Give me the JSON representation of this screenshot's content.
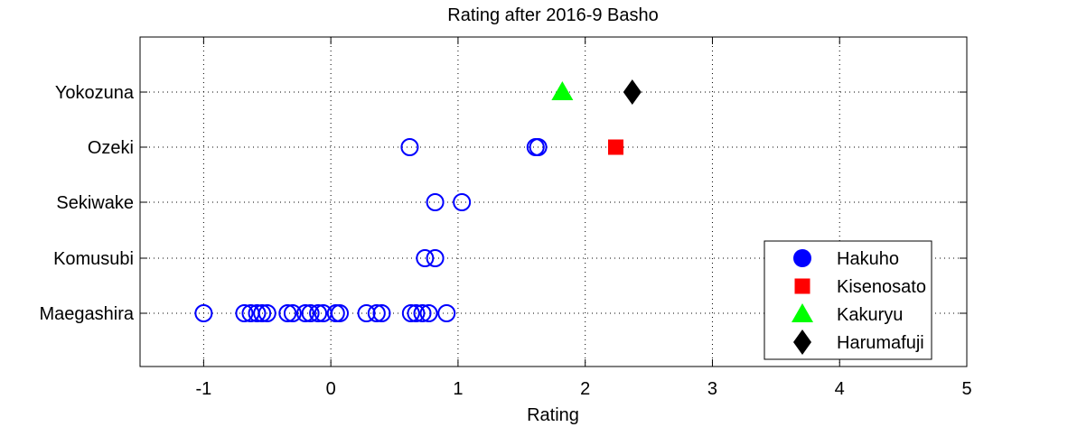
{
  "chart_data": {
    "type": "scatter",
    "title": "Rating after 2016-9 Basho",
    "xlabel": "Rating",
    "ylabel": "",
    "xlim": [
      -1.5,
      5
    ],
    "xticks": [
      "-1",
      "0",
      "1",
      "2",
      "3",
      "4",
      "5"
    ],
    "xtick_values": [
      -1,
      0,
      1,
      2,
      3,
      4,
      5
    ],
    "categories": [
      "Yokozuna",
      "Ozeki",
      "Sekiwake",
      "Komusubi",
      "Maegashira"
    ],
    "grid": true,
    "legend_position": "bottom-right",
    "series": [
      {
        "name": "Hakuho",
        "marker": "open-circle",
        "color": "#0000ff",
        "points": [
          {
            "x": 0.62,
            "y": "Ozeki"
          },
          {
            "x": 1.61,
            "y": "Ozeki"
          },
          {
            "x": 1.63,
            "y": "Ozeki"
          },
          {
            "x": 0.82,
            "y": "Sekiwake"
          },
          {
            "x": 1.03,
            "y": "Sekiwake"
          },
          {
            "x": 0.74,
            "y": "Komusubi"
          },
          {
            "x": 0.82,
            "y": "Komusubi"
          },
          {
            "x": -1.0,
            "y": "Maegashira"
          },
          {
            "x": -0.68,
            "y": "Maegashira"
          },
          {
            "x": -0.63,
            "y": "Maegashira"
          },
          {
            "x": -0.58,
            "y": "Maegashira"
          },
          {
            "x": -0.54,
            "y": "Maegashira"
          },
          {
            "x": -0.5,
            "y": "Maegashira"
          },
          {
            "x": -0.34,
            "y": "Maegashira"
          },
          {
            "x": -0.3,
            "y": "Maegashira"
          },
          {
            "x": -0.2,
            "y": "Maegashira"
          },
          {
            "x": -0.16,
            "y": "Maegashira"
          },
          {
            "x": -0.1,
            "y": "Maegashira"
          },
          {
            "x": -0.06,
            "y": "Maegashira"
          },
          {
            "x": 0.04,
            "y": "Maegashira"
          },
          {
            "x": 0.07,
            "y": "Maegashira"
          },
          {
            "x": 0.28,
            "y": "Maegashira"
          },
          {
            "x": 0.36,
            "y": "Maegashira"
          },
          {
            "x": 0.4,
            "y": "Maegashira"
          },
          {
            "x": 0.63,
            "y": "Maegashira"
          },
          {
            "x": 0.67,
            "y": "Maegashira"
          },
          {
            "x": 0.72,
            "y": "Maegashira"
          },
          {
            "x": 0.77,
            "y": "Maegashira"
          },
          {
            "x": 0.91,
            "y": "Maegashira"
          }
        ]
      },
      {
        "name": "Kisenosato",
        "marker": "filled-square",
        "color": "#ff0000",
        "points": [
          {
            "x": 2.24,
            "y": "Ozeki"
          }
        ]
      },
      {
        "name": "Kakuryu",
        "marker": "filled-triangle",
        "color": "#00ff00",
        "points": [
          {
            "x": 1.82,
            "y": "Yokozuna"
          }
        ]
      },
      {
        "name": "Harumafuji",
        "marker": "filled-diamond",
        "color": "#000000",
        "points": [
          {
            "x": 2.37,
            "y": "Yokozuna"
          }
        ]
      }
    ]
  }
}
